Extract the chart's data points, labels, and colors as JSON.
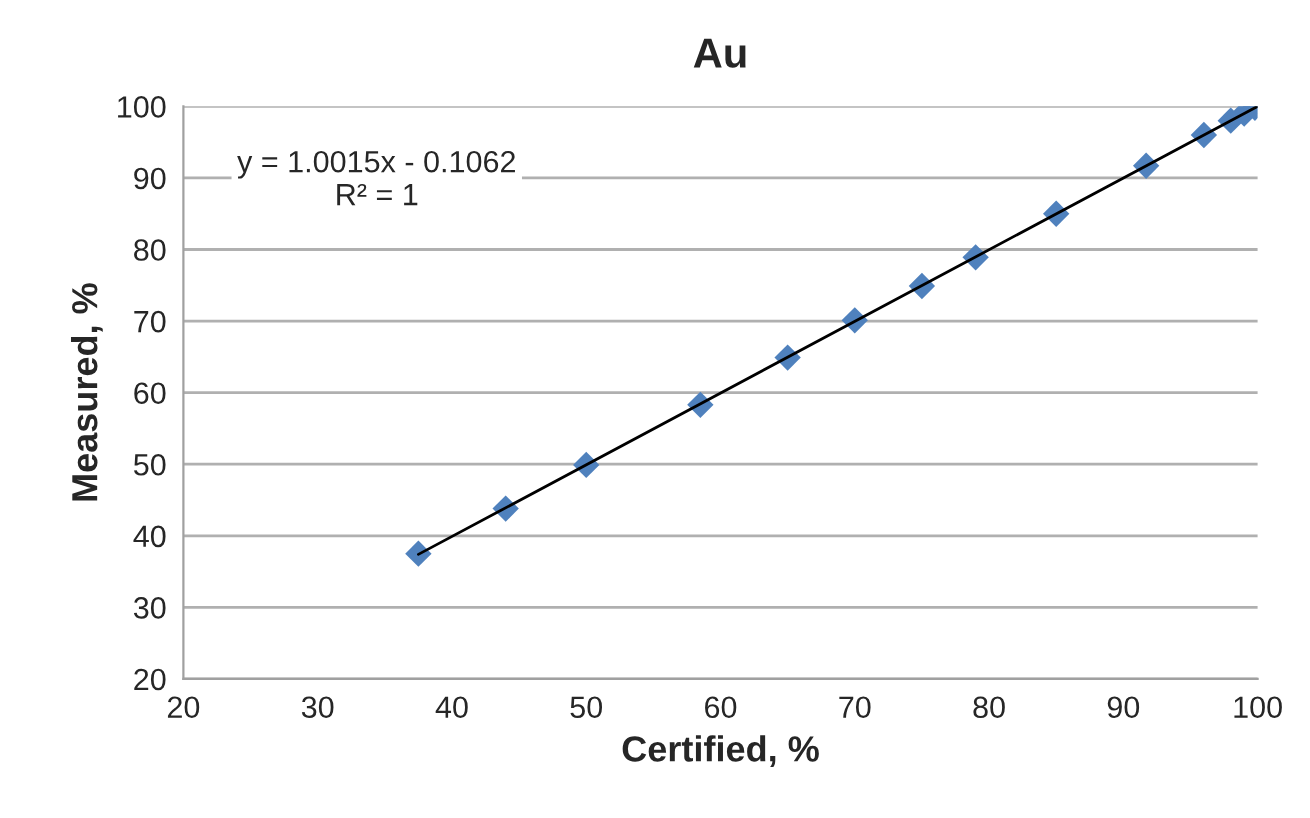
{
  "chart_data": {
    "type": "scatter",
    "title": "Au",
    "xlabel": "Certified, %",
    "ylabel": "Measured, %",
    "xlim": [
      20,
      100
    ],
    "xticks": [
      20,
      30,
      40,
      50,
      60,
      70,
      80,
      90,
      100
    ],
    "ylim": [
      20,
      100
    ],
    "yticks": [
      20,
      30,
      40,
      50,
      60,
      70,
      80,
      90,
      100
    ],
    "grid": "y",
    "legend": false,
    "annotations": [
      "y = 1.0015x - 0.1062\nR² = 1"
    ],
    "series": [
      {
        "marker": "diamond",
        "color": "#4f81bd",
        "x": [
          37.5,
          44,
          50,
          58.5,
          65,
          70,
          75,
          79,
          85,
          91.7,
          96,
          98,
          99,
          99.8
        ],
        "values": [
          37.5,
          43.8,
          49.9,
          58.3,
          64.9,
          70.1,
          74.9,
          78.9,
          85,
          91.7,
          96,
          98,
          99,
          99.8
        ]
      },
      {
        "type": "line",
        "marker": "none",
        "color": "#000000",
        "x": [
          37.5,
          100
        ],
        "values": [
          37.4,
          100.0
        ]
      }
    ]
  }
}
